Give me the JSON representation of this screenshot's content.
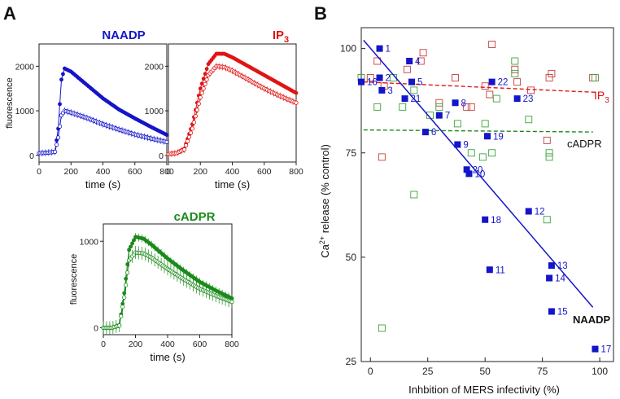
{
  "panel_labels": {
    "a": "A",
    "b": "B"
  },
  "colors": {
    "naadp": "#1414c8",
    "ip3": "#e01414",
    "cadpr": "#1a8a1a",
    "ip3_square": "#c83c3c",
    "cadpr_square": "#3aa23a"
  },
  "chart_data": [
    {
      "id": "naadp_trace",
      "type": "line",
      "title": "NAADP",
      "ylabel": "fluorescence",
      "xlabel": "time (s)",
      "xlim": [
        0,
        800
      ],
      "ylim": [
        -150,
        2500
      ],
      "xticks": [
        "0",
        "200",
        "400",
        "600",
        "800"
      ],
      "yticks": [
        "0",
        "1000",
        "2000"
      ],
      "xtick_values": [
        0,
        200,
        400,
        600,
        800
      ],
      "ytick_values": [
        0,
        1000,
        2000
      ],
      "color": "#1414c8",
      "series": [
        {
          "style": "filled",
          "x": [
            0,
            50,
            100,
            120,
            140,
            160,
            200,
            300,
            400,
            500,
            600,
            700,
            800
          ],
          "y": [
            50,
            60,
            80,
            600,
            1700,
            1950,
            1880,
            1580,
            1280,
            1030,
            830,
            640,
            460
          ]
        },
        {
          "style": "open",
          "x": [
            0,
            50,
            100,
            120,
            140,
            160,
            200,
            300,
            400,
            500,
            600,
            700,
            800
          ],
          "y": [
            50,
            60,
            80,
            400,
            900,
            1000,
            960,
            840,
            700,
            580,
            470,
            380,
            300
          ]
        }
      ]
    },
    {
      "id": "ip3_trace",
      "type": "line",
      "title": "IP",
      "title_sub": "3",
      "xlabel": "time (s)",
      "xlim": [
        0,
        800
      ],
      "ylim": [
        -150,
        2500
      ],
      "xticks": [
        "0",
        "200",
        "400",
        "600",
        "800"
      ],
      "yticks": [
        "0",
        "1000",
        "2000"
      ],
      "xtick_values": [
        0,
        200,
        400,
        600,
        800
      ],
      "ytick_values": [
        0,
        1000,
        2000
      ],
      "color": "#e01414",
      "series": [
        {
          "style": "filled",
          "x": [
            0,
            50,
            100,
            150,
            200,
            250,
            300,
            350,
            400,
            500,
            600,
            700,
            800
          ],
          "y": [
            30,
            50,
            150,
            700,
            1500,
            2050,
            2280,
            2280,
            2200,
            2000,
            1800,
            1600,
            1400
          ]
        },
        {
          "style": "open",
          "x": [
            0,
            50,
            100,
            150,
            200,
            250,
            300,
            350,
            400,
            500,
            600,
            700,
            800
          ],
          "y": [
            30,
            50,
            130,
            600,
            1300,
            1800,
            2000,
            1980,
            1900,
            1700,
            1500,
            1330,
            1180
          ]
        }
      ]
    },
    {
      "id": "cadpr_trace",
      "type": "line",
      "title": "cADPR",
      "ylabel": "fluorescence",
      "xlabel": "time (s)",
      "xlim": [
        0,
        800
      ],
      "ylim": [
        -80,
        1200
      ],
      "xticks": [
        "0",
        "200",
        "400",
        "600",
        "800"
      ],
      "yticks": [
        "0",
        "1000"
      ],
      "xtick_values": [
        0,
        200,
        400,
        600,
        800
      ],
      "ytick_values": [
        0,
        1000
      ],
      "color": "#1a8a1a",
      "series": [
        {
          "style": "filled",
          "x": [
            0,
            50,
            100,
            130,
            160,
            200,
            250,
            300,
            400,
            500,
            600,
            700,
            800
          ],
          "y": [
            0,
            0,
            30,
            400,
            900,
            1050,
            1030,
            960,
            800,
            660,
            530,
            430,
            340
          ]
        },
        {
          "style": "open",
          "x": [
            0,
            50,
            100,
            130,
            160,
            200,
            250,
            300,
            400,
            500,
            600,
            700,
            800
          ],
          "y": [
            0,
            0,
            25,
            350,
            780,
            870,
            860,
            810,
            680,
            560,
            450,
            370,
            300
          ]
        }
      ]
    },
    {
      "id": "scatter_b",
      "type": "scatter",
      "xlabel": "Inhbition of MERS infectivity (%)",
      "ylabel": "Ca",
      "ylabel_sup": "2+",
      "ylabel_rest": " release (% control)",
      "xlim": [
        -4,
        106
      ],
      "ylim": [
        25,
        105
      ],
      "xticks": [
        "0",
        "25",
        "50",
        "75",
        "100"
      ],
      "yticks": [
        "25",
        "50",
        "75",
        "100"
      ],
      "xtick_values": [
        0,
        25,
        50,
        75,
        100
      ],
      "ytick_values": [
        25,
        50,
        75,
        100
      ],
      "naadp_points": [
        {
          "label": "1",
          "x": 4,
          "y": 100
        },
        {
          "label": "2",
          "x": 4,
          "y": 93
        },
        {
          "label": "3",
          "x": 5,
          "y": 90
        },
        {
          "label": "4",
          "x": 17,
          "y": 97
        },
        {
          "label": "5",
          "x": 18,
          "y": 92
        },
        {
          "label": "6",
          "x": 24,
          "y": 80
        },
        {
          "label": "7",
          "x": 30,
          "y": 84
        },
        {
          "label": "8",
          "x": 37,
          "y": 87
        },
        {
          "label": "9",
          "x": 38,
          "y": 77
        },
        {
          "label": "10",
          "x": 43,
          "y": 70
        },
        {
          "label": "11",
          "x": 52,
          "y": 47
        },
        {
          "label": "12",
          "x": 69,
          "y": 61
        },
        {
          "label": "13",
          "x": 79,
          "y": 48
        },
        {
          "label": "14",
          "x": 78,
          "y": 45
        },
        {
          "label": "15",
          "x": 79,
          "y": 37
        },
        {
          "label": "16",
          "x": -4,
          "y": 92
        },
        {
          "label": "17",
          "x": 98,
          "y": 28
        },
        {
          "label": "18",
          "x": 50,
          "y": 59
        },
        {
          "label": "19",
          "x": 51,
          "y": 79
        },
        {
          "label": "20",
          "x": 42,
          "y": 71
        },
        {
          "label": "21",
          "x": 15,
          "y": 88
        },
        {
          "label": "22",
          "x": 53,
          "y": 92
        },
        {
          "label": "23",
          "x": 64,
          "y": 88
        }
      ],
      "ip3_points": [
        {
          "x": 0,
          "y": 93
        },
        {
          "x": 3,
          "y": 97
        },
        {
          "x": 6,
          "y": 91
        },
        {
          "x": 16,
          "y": 95
        },
        {
          "x": 22,
          "y": 97
        },
        {
          "x": 23,
          "y": 99
        },
        {
          "x": 30,
          "y": 87
        },
        {
          "x": 37,
          "y": 93
        },
        {
          "x": 42,
          "y": 86
        },
        {
          "x": 44,
          "y": 86
        },
        {
          "x": 50,
          "y": 91
        },
        {
          "x": 52,
          "y": 89
        },
        {
          "x": 53,
          "y": 101
        },
        {
          "x": 63,
          "y": 95
        },
        {
          "x": 64,
          "y": 92
        },
        {
          "x": 70,
          "y": 90
        },
        {
          "x": 78,
          "y": 93
        },
        {
          "x": 79,
          "y": 94
        },
        {
          "x": 97,
          "y": 93
        },
        {
          "x": 5,
          "y": 74
        },
        {
          "x": 77,
          "y": 78
        }
      ],
      "cadpr_points": [
        {
          "x": -4,
          "y": 93
        },
        {
          "x": 3,
          "y": 86
        },
        {
          "x": 10,
          "y": 93
        },
        {
          "x": 14,
          "y": 86
        },
        {
          "x": 19,
          "y": 90
        },
        {
          "x": 26,
          "y": 84
        },
        {
          "x": 30,
          "y": 86
        },
        {
          "x": 38,
          "y": 82
        },
        {
          "x": 44,
          "y": 75
        },
        {
          "x": 49,
          "y": 74
        },
        {
          "x": 50,
          "y": 82
        },
        {
          "x": 53,
          "y": 75
        },
        {
          "x": 55,
          "y": 88
        },
        {
          "x": 63,
          "y": 97
        },
        {
          "x": 63,
          "y": 94
        },
        {
          "x": 69,
          "y": 83
        },
        {
          "x": 78,
          "y": 74
        },
        {
          "x": 78,
          "y": 75
        },
        {
          "x": 77,
          "y": 59
        },
        {
          "x": 98,
          "y": 93
        },
        {
          "x": 19,
          "y": 65
        },
        {
          "x": 5,
          "y": 33
        }
      ],
      "fit_lines": [
        {
          "name": "NAADP",
          "color": "#1414c8",
          "style": "solid",
          "x": [
            -3,
            97
          ],
          "y": [
            102,
            38
          ]
        },
        {
          "name": "IP",
          "name_sub": "3",
          "color": "#e01414",
          "style": "dashed",
          "x": [
            -3,
            99
          ],
          "y": [
            92,
            89.5
          ]
        },
        {
          "name": "cADPR",
          "color": "#1a8a1a",
          "style": "dashed",
          "x": [
            -3,
            97
          ],
          "y": [
            80.5,
            80
          ]
        }
      ]
    }
  ]
}
